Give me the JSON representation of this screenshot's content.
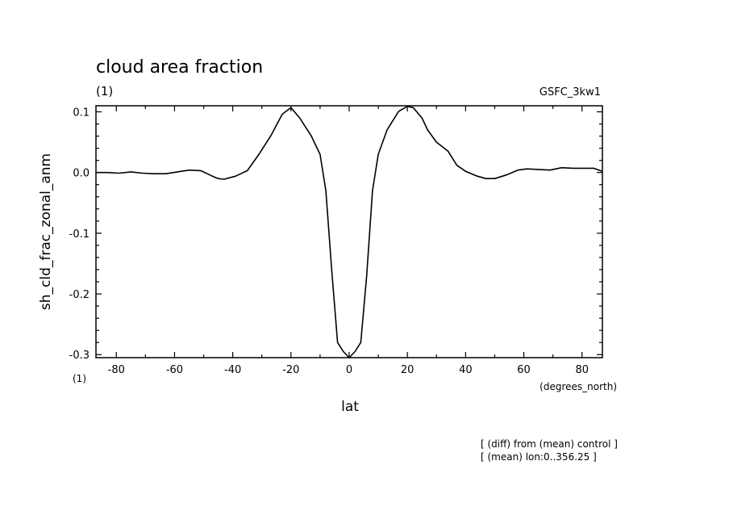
{
  "chart_data": {
    "type": "line",
    "title": "cloud area fraction",
    "units_label": "(1)",
    "model_label": "GSFC_3kw1",
    "ylabel": "sh_cld_frac_zonal_anm",
    "xlabel": "lat",
    "x_units": "(degrees_north)",
    "x_axis_units_label": "(1)",
    "xlim": [
      -87,
      87
    ],
    "ylim": [
      -0.305,
      0.11
    ],
    "x_ticks": [
      {
        "value": -80,
        "label": "-80"
      },
      {
        "value": -60,
        "label": "-60"
      },
      {
        "value": -40,
        "label": "-40"
      },
      {
        "value": -20,
        "label": "-20"
      },
      {
        "value": 0,
        "label": "0"
      },
      {
        "value": 20,
        "label": "20"
      },
      {
        "value": 40,
        "label": "40"
      },
      {
        "value": 60,
        "label": "60"
      },
      {
        "value": 80,
        "label": "80"
      }
    ],
    "y_ticks": [
      {
        "value": 0.1,
        "label": "0.1"
      },
      {
        "value": 0.0,
        "label": "0.0"
      },
      {
        "value": -0.1,
        "label": "-0.1"
      },
      {
        "value": -0.2,
        "label": "-0.2"
      },
      {
        "value": -0.3,
        "label": "-0.3"
      }
    ],
    "grid": false,
    "series": [
      {
        "color": "#000000",
        "x": [
          -87,
          -83,
          -79,
          -75,
          -71,
          -67,
          -63,
          -59,
          -55,
          -51,
          -47,
          -45,
          -43,
          -39,
          -35,
          -31,
          -27,
          -23,
          -20,
          -17,
          -13,
          -10,
          -8,
          -6,
          -4,
          -2,
          0,
          2,
          4,
          6,
          8,
          10,
          13,
          17,
          20,
          22,
          25,
          27,
          30,
          34,
          37,
          40,
          44,
          47,
          50,
          54,
          58,
          61,
          65,
          69,
          73,
          77,
          80,
          84,
          87
        ],
        "y": [
          0.0,
          0.0,
          -0.001,
          0.001,
          -0.001,
          -0.002,
          -0.002,
          0.001,
          0.004,
          0.003,
          -0.006,
          -0.01,
          -0.011,
          -0.006,
          0.003,
          0.03,
          0.06,
          0.096,
          0.107,
          0.09,
          0.06,
          0.03,
          -0.03,
          -0.16,
          -0.28,
          -0.295,
          -0.305,
          -0.295,
          -0.28,
          -0.17,
          -0.03,
          0.03,
          0.07,
          0.101,
          0.109,
          0.107,
          0.09,
          0.07,
          0.05,
          0.035,
          0.012,
          0.002,
          -0.006,
          -0.01,
          -0.01,
          -0.004,
          0.004,
          0.006,
          0.005,
          0.004,
          0.008,
          0.007,
          0.007,
          0.007,
          0.002
        ]
      }
    ]
  },
  "footnotes": {
    "line1": "[ (diff) from (mean) control ]",
    "line2": "[ (mean) lon:0..356.25 ]"
  }
}
